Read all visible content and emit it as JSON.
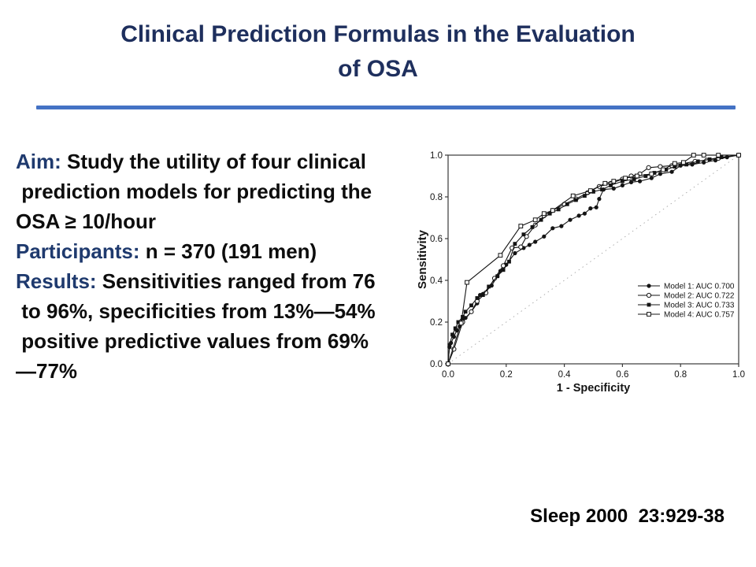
{
  "slide": {
    "title_lines": [
      "Clinical Prediction Formulas in the Evaluation",
      "of OSA"
    ],
    "body": {
      "lines": [
        {
          "label": "Aim:",
          "text": " Study the utility of four clinical"
        },
        {
          "label": "",
          "text": " prediction models for predicting the"
        },
        {
          "label": "",
          "text": "OSA ≥ 10/hour"
        },
        {
          "label": "Participants:",
          "text": " n = 370 (191 men)"
        },
        {
          "label": "Results:",
          "text": " Sensitivities ranged from 76"
        },
        {
          "label": "",
          "text": " to 96%, specificities from 13%—54%"
        },
        {
          "label": "",
          "text": " positive predictive values from 69%"
        },
        {
          "label": "",
          "text": "—77%"
        }
      ]
    },
    "citation": "Sleep 2000  23:929-38"
  },
  "colors": {
    "title": "#1E2F5D",
    "label": "#1F3A6E",
    "divider": "#4472C4",
    "text": "#0D0D0D",
    "chart_ink": "#141414"
  },
  "chart_data": {
    "type": "line",
    "title": "",
    "xlabel": "1 - Specificity",
    "ylabel": "Sensitivity",
    "xlim": [
      0.0,
      1.0
    ],
    "ylim": [
      0.0,
      1.0
    ],
    "xticks": [
      0.0,
      0.2,
      0.4,
      0.6,
      0.8,
      1.0
    ],
    "yticks": [
      0.0,
      0.2,
      0.4,
      0.6,
      0.8,
      1.0
    ],
    "grid": false,
    "diagonal_reference": true,
    "legend_position": "inside-right",
    "series": [
      {
        "name": "Model 1: AUC 0.700",
        "marker": "filled-circle",
        "points": [
          [
            0,
            0
          ],
          [
            0.005,
            0.08
          ],
          [
            0.01,
            0.1
          ],
          [
            0.02,
            0.13
          ],
          [
            0.03,
            0.16
          ],
          [
            0.04,
            0.18
          ],
          [
            0.05,
            0.21
          ],
          [
            0.06,
            0.22
          ],
          [
            0.08,
            0.25
          ],
          [
            0.1,
            0.29
          ],
          [
            0.11,
            0.33
          ],
          [
            0.12,
            0.335
          ],
          [
            0.15,
            0.375
          ],
          [
            0.17,
            0.42
          ],
          [
            0.18,
            0.445
          ],
          [
            0.2,
            0.475
          ],
          [
            0.23,
            0.53
          ],
          [
            0.26,
            0.555
          ],
          [
            0.28,
            0.57
          ],
          [
            0.3,
            0.585
          ],
          [
            0.33,
            0.61
          ],
          [
            0.36,
            0.65
          ],
          [
            0.39,
            0.66
          ],
          [
            0.42,
            0.69
          ],
          [
            0.45,
            0.71
          ],
          [
            0.47,
            0.72
          ],
          [
            0.49,
            0.745
          ],
          [
            0.51,
            0.75
          ],
          [
            0.52,
            0.79
          ],
          [
            0.535,
            0.835
          ],
          [
            0.57,
            0.84
          ],
          [
            0.6,
            0.855
          ],
          [
            0.63,
            0.87
          ],
          [
            0.66,
            0.875
          ],
          [
            0.7,
            0.89
          ],
          [
            0.73,
            0.91
          ],
          [
            0.77,
            0.92
          ],
          [
            0.8,
            0.95
          ],
          [
            0.84,
            0.955
          ],
          [
            0.88,
            0.965
          ],
          [
            0.92,
            0.975
          ],
          [
            0.96,
            0.99
          ],
          [
            1,
            1
          ]
        ]
      },
      {
        "name": "Model 2: AUC 0.722",
        "marker": "open-circle",
        "points": [
          [
            0,
            0
          ],
          [
            0.02,
            0.07
          ],
          [
            0.05,
            0.2
          ],
          [
            0.08,
            0.25
          ],
          [
            0.1,
            0.3
          ],
          [
            0.13,
            0.34
          ],
          [
            0.16,
            0.41
          ],
          [
            0.19,
            0.47
          ],
          [
            0.22,
            0.555
          ],
          [
            0.25,
            0.56
          ],
          [
            0.27,
            0.61
          ],
          [
            0.3,
            0.665
          ],
          [
            0.33,
            0.71
          ],
          [
            0.36,
            0.735
          ],
          [
            0.4,
            0.765
          ],
          [
            0.44,
            0.79
          ],
          [
            0.48,
            0.82
          ],
          [
            0.52,
            0.85
          ],
          [
            0.56,
            0.865
          ],
          [
            0.6,
            0.885
          ],
          [
            0.63,
            0.9
          ],
          [
            0.66,
            0.91
          ],
          [
            0.69,
            0.94
          ],
          [
            0.73,
            0.945
          ],
          [
            0.77,
            0.95
          ],
          [
            0.81,
            0.96
          ],
          [
            0.85,
            0.97
          ],
          [
            0.89,
            0.975
          ],
          [
            0.93,
            0.985
          ],
          [
            1,
            1
          ]
        ]
      },
      {
        "name": "Model 3: AUC 0.733",
        "marker": "filled-square",
        "points": [
          [
            0,
            0
          ],
          [
            0.005,
            0.09
          ],
          [
            0.015,
            0.14
          ],
          [
            0.025,
            0.17
          ],
          [
            0.035,
            0.2
          ],
          [
            0.05,
            0.225
          ],
          [
            0.06,
            0.25
          ],
          [
            0.08,
            0.28
          ],
          [
            0.1,
            0.315
          ],
          [
            0.12,
            0.33
          ],
          [
            0.14,
            0.37
          ],
          [
            0.17,
            0.42
          ],
          [
            0.19,
            0.45
          ],
          [
            0.21,
            0.49
          ],
          [
            0.23,
            0.575
          ],
          [
            0.26,
            0.62
          ],
          [
            0.29,
            0.655
          ],
          [
            0.32,
            0.69
          ],
          [
            0.35,
            0.72
          ],
          [
            0.38,
            0.74
          ],
          [
            0.41,
            0.765
          ],
          [
            0.44,
            0.785
          ],
          [
            0.47,
            0.805
          ],
          [
            0.5,
            0.825
          ],
          [
            0.53,
            0.835
          ],
          [
            0.56,
            0.855
          ],
          [
            0.6,
            0.875
          ],
          [
            0.64,
            0.885
          ],
          [
            0.68,
            0.9
          ],
          [
            0.71,
            0.915
          ],
          [
            0.75,
            0.93
          ],
          [
            0.78,
            0.945
          ],
          [
            0.82,
            0.955
          ],
          [
            0.86,
            0.97
          ],
          [
            0.9,
            0.98
          ],
          [
            0.94,
            0.99
          ],
          [
            1,
            1
          ]
        ]
      },
      {
        "name": "Model 4: AUC 0.757",
        "marker": "open-square",
        "points": [
          [
            0,
            0
          ],
          [
            0.045,
            0.195
          ],
          [
            0.065,
            0.39
          ],
          [
            0.18,
            0.52
          ],
          [
            0.25,
            0.66
          ],
          [
            0.3,
            0.69
          ],
          [
            0.33,
            0.72
          ],
          [
            0.36,
            0.735
          ],
          [
            0.43,
            0.805
          ],
          [
            0.49,
            0.83
          ],
          [
            0.54,
            0.865
          ],
          [
            0.57,
            0.875
          ],
          [
            0.61,
            0.89
          ],
          [
            0.65,
            0.9
          ],
          [
            0.7,
            0.91
          ],
          [
            0.74,
            0.93
          ],
          [
            0.78,
            0.96
          ],
          [
            0.81,
            0.965
          ],
          [
            0.845,
            1.0
          ],
          [
            0.88,
            1.0
          ],
          [
            0.93,
            1.0
          ],
          [
            1,
            1
          ]
        ]
      }
    ]
  }
}
